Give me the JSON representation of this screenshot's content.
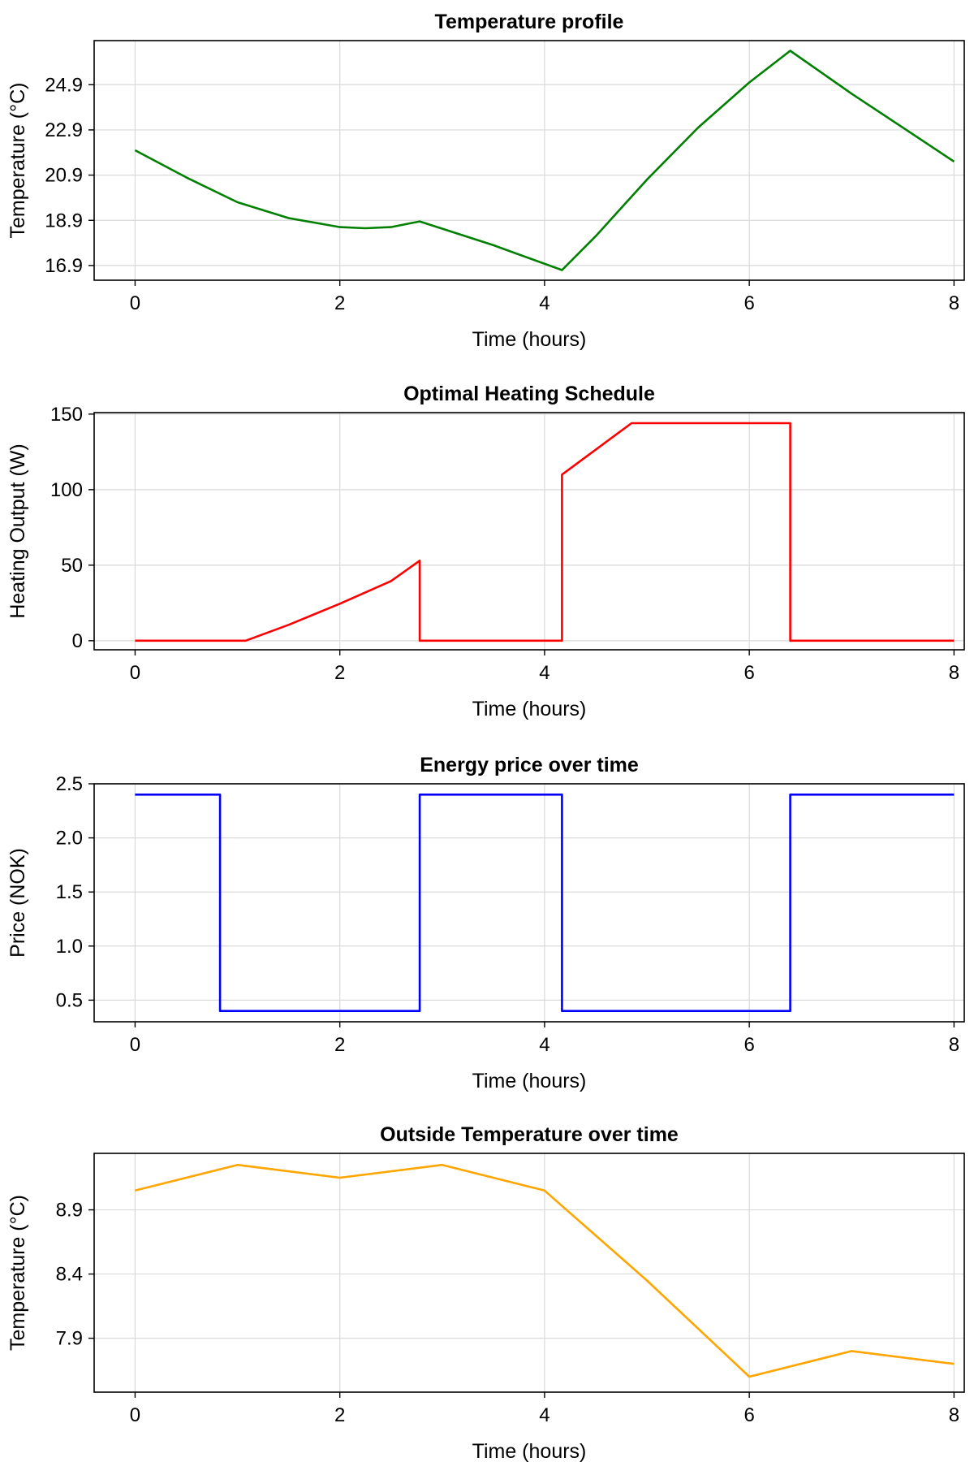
{
  "chart_data": [
    {
      "type": "line",
      "title": "Temperature profile",
      "xlabel": "Time (hours)",
      "ylabel": "Temperature (°C)",
      "xlim": [
        -0.4,
        8.1
      ],
      "ylim": [
        16.25,
        26.85
      ],
      "xticks": [
        "0",
        "2",
        "4",
        "6",
        "8"
      ],
      "yticks": [
        "16.9",
        "18.9",
        "20.9",
        "22.9",
        "24.9"
      ],
      "grid": true,
      "color": "#008000",
      "series": [
        {
          "x": [
            0,
            0.5,
            1.0,
            1.5,
            2.0,
            2.25,
            2.5,
            2.78,
            3.5,
            4.17,
            4.5,
            5.0,
            5.5,
            6.0,
            6.4,
            7.0,
            7.5,
            8.0
          ],
          "y": [
            22.0,
            20.8,
            19.7,
            19.0,
            18.6,
            18.55,
            18.6,
            18.85,
            17.8,
            16.7,
            18.2,
            20.7,
            23.0,
            25.0,
            26.4,
            24.5,
            23.0,
            21.5
          ]
        }
      ]
    },
    {
      "type": "line",
      "title": "Optimal Heating Schedule",
      "xlabel": "Time (hours)",
      "ylabel": "Heating Output (W)",
      "xlim": [
        -0.4,
        8.1
      ],
      "ylim": [
        -6,
        151
      ],
      "xticks": [
        "0",
        "2",
        "4",
        "6",
        "8"
      ],
      "yticks": [
        "0",
        "50",
        "100",
        "150"
      ],
      "grid": true,
      "color": "#ff0000",
      "series": [
        {
          "x": [
            0,
            1.08,
            1.5,
            2.0,
            2.5,
            2.78,
            2.78,
            4.17,
            4.17,
            4.85,
            6.4,
            6.4,
            8.0
          ],
          "y": [
            0,
            0,
            10.5,
            24.5,
            39.5,
            53,
            0,
            0,
            110,
            144,
            144,
            0,
            0
          ]
        }
      ]
    },
    {
      "type": "line",
      "title": "Energy price over time",
      "xlabel": "Time (hours)",
      "ylabel": "Price (NOK)",
      "xlim": [
        -0.4,
        8.1
      ],
      "ylim": [
        0.3,
        2.5
      ],
      "xticks": [
        "0",
        "2",
        "4",
        "6",
        "8"
      ],
      "yticks": [
        "0.5",
        "1.0",
        "1.5",
        "2.0",
        "2.5"
      ],
      "grid": true,
      "color": "#0000ff",
      "series": [
        {
          "x": [
            0,
            0.83,
            0.83,
            2.78,
            2.78,
            4.17,
            4.17,
            6.4,
            6.4,
            8.0
          ],
          "y": [
            2.4,
            2.4,
            0.4,
            0.4,
            2.4,
            2.4,
            0.4,
            0.4,
            2.4,
            2.4
          ]
        }
      ]
    },
    {
      "type": "line",
      "title": "Outside Temperature over time",
      "xlabel": "Time (hours)",
      "ylabel": "Temperature (°C)",
      "xlim": [
        -0.4,
        8.1
      ],
      "ylim": [
        7.48,
        9.34
      ],
      "xticks": [
        "0",
        "2",
        "4",
        "6",
        "8"
      ],
      "yticks": [
        "7.9",
        "8.4",
        "8.9"
      ],
      "grid": true,
      "color": "#ffa500",
      "series": [
        {
          "x": [
            0,
            1,
            2,
            3,
            4,
            5,
            6,
            7,
            8
          ],
          "y": [
            9.05,
            9.25,
            9.15,
            9.25,
            9.05,
            8.35,
            7.6,
            7.8,
            7.7
          ]
        }
      ]
    }
  ]
}
